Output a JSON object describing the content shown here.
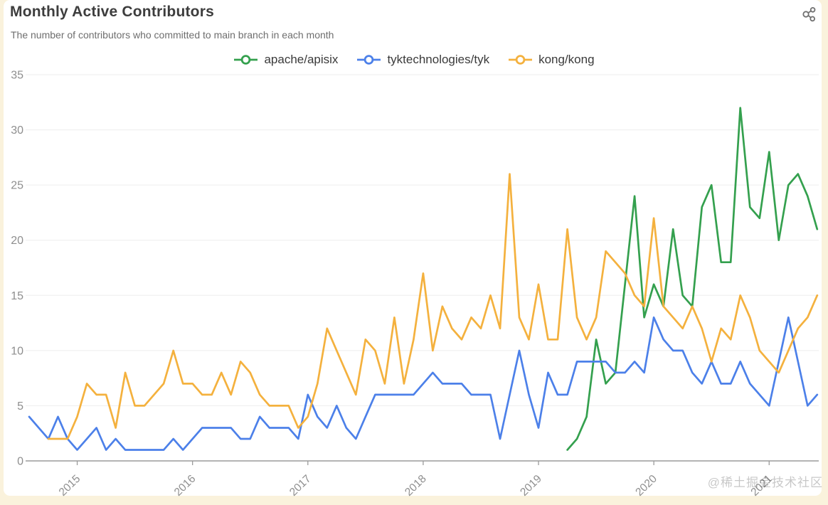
{
  "header": {
    "title": "Monthly Active Contributors",
    "subtitle": "The number of contributors who committed to main branch in each month",
    "share_icon": "share-nodes-icon"
  },
  "watermark": {
    "text": "@稀土掘金技术社区"
  },
  "colors": {
    "page_bg": "#FAF2DC",
    "card_bg": "#FFFFFF",
    "grid": "#EDEDED",
    "axis": "#9B9B9B",
    "tick_label": "#8E8E8E",
    "title": "#3D3D3D",
    "subtitle": "#6E6E6E",
    "legend_text": "#3A3A3A",
    "watermark": "#C6C6C6",
    "apisix_green": "#34A04E",
    "tyk_blue": "#4C80E9",
    "kong_yellow": "#F4B13E"
  },
  "chart_data": {
    "type": "line",
    "title": "Monthly Active Contributors",
    "x_start_month": "2014-08",
    "x_months": 83,
    "x_tick_labels": [
      "2015",
      "2016",
      "2017",
      "2018",
      "2019",
      "2020",
      "2021"
    ],
    "x_tick_month_indices": [
      5,
      17,
      29,
      41,
      53,
      65,
      77
    ],
    "ylim": [
      0,
      35
    ],
    "yticks": [
      0,
      5,
      10,
      15,
      20,
      25,
      30,
      35
    ],
    "grid": "horizontal-only",
    "legend_position": "top-center",
    "series": [
      {
        "name": "apache/apisix",
        "color": "#34A04E",
        "values": [
          null,
          null,
          null,
          null,
          null,
          null,
          null,
          null,
          null,
          null,
          null,
          null,
          null,
          null,
          null,
          null,
          null,
          null,
          null,
          null,
          null,
          null,
          null,
          null,
          null,
          null,
          null,
          null,
          null,
          null,
          null,
          null,
          null,
          null,
          null,
          null,
          null,
          null,
          null,
          null,
          null,
          null,
          null,
          null,
          null,
          null,
          null,
          null,
          null,
          null,
          null,
          null,
          null,
          null,
          null,
          null,
          1,
          2,
          4,
          11,
          7,
          8,
          16,
          24,
          13,
          16,
          14,
          21,
          15,
          14,
          23,
          25,
          18,
          18,
          32,
          23,
          22,
          28,
          20,
          25,
          26,
          24,
          21
        ]
      },
      {
        "name": "tyktechnologies/tyk",
        "color": "#4C80E9",
        "values": [
          4,
          3,
          2,
          4,
          2,
          1,
          2,
          3,
          1,
          2,
          1,
          1,
          1,
          1,
          1,
          2,
          1,
          2,
          3,
          3,
          3,
          3,
          2,
          2,
          4,
          3,
          3,
          3,
          2,
          6,
          4,
          3,
          5,
          3,
          2,
          4,
          6,
          6,
          6,
          6,
          6,
          7,
          8,
          7,
          7,
          7,
          6,
          6,
          6,
          2,
          6,
          10,
          6,
          3,
          8,
          6,
          6,
          9,
          9,
          9,
          9,
          8,
          8,
          9,
          8,
          13,
          11,
          10,
          10,
          8,
          7,
          9,
          7,
          7,
          9,
          7,
          6,
          5,
          9,
          13,
          9,
          5,
          6
        ]
      },
      {
        "name": "kong/kong",
        "color": "#F4B13E",
        "values": [
          null,
          null,
          2,
          2,
          2,
          4,
          7,
          6,
          6,
          3,
          8,
          5,
          5,
          6,
          7,
          10,
          7,
          7,
          6,
          6,
          8,
          6,
          9,
          8,
          6,
          5,
          5,
          5,
          3,
          4,
          7,
          12,
          10,
          8,
          6,
          11,
          10,
          7,
          13,
          7,
          11,
          17,
          10,
          14,
          12,
          11,
          13,
          12,
          15,
          12,
          26,
          13,
          11,
          16,
          11,
          11,
          21,
          13,
          11,
          13,
          19,
          18,
          17,
          15,
          14,
          22,
          14,
          13,
          12,
          14,
          12,
          9,
          12,
          11,
          15,
          13,
          10,
          9,
          8,
          10,
          12,
          13,
          15
        ]
      }
    ]
  }
}
